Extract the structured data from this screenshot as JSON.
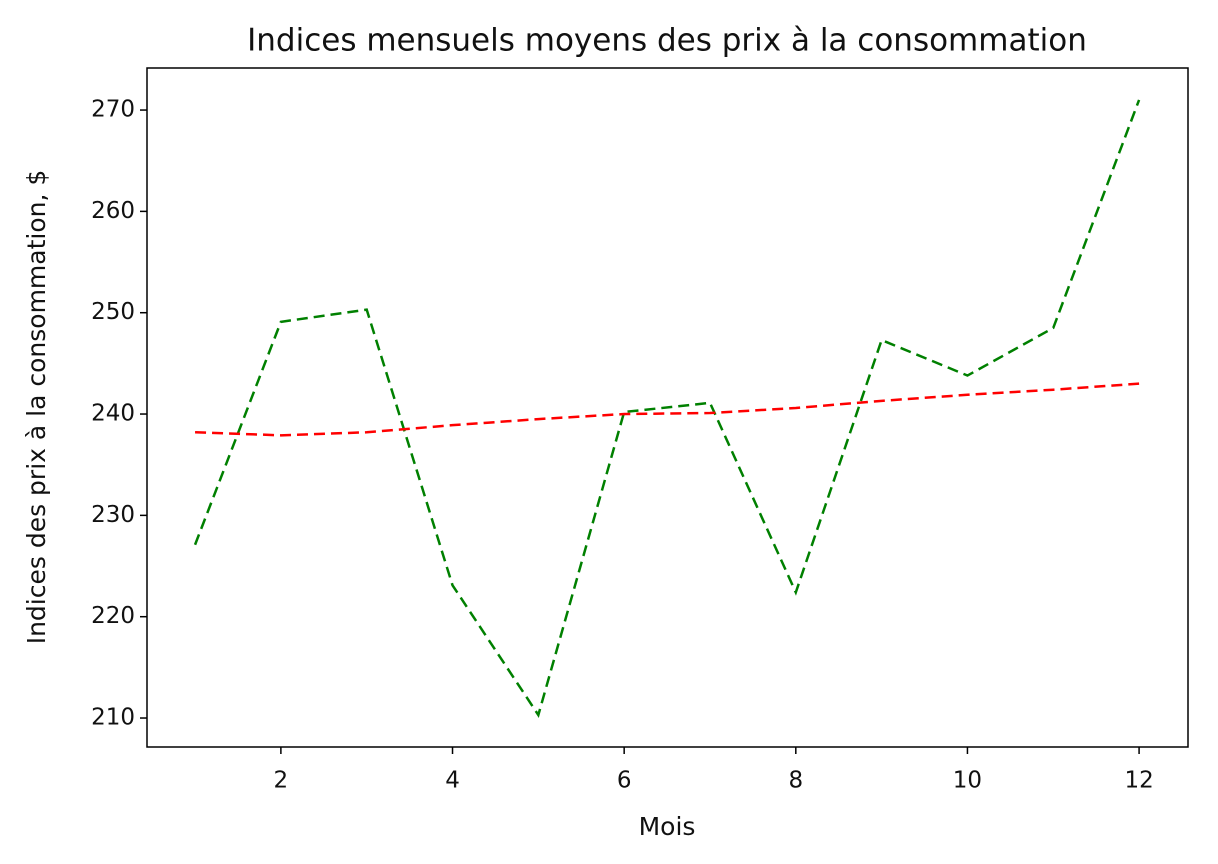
{
  "chart_data": {
    "type": "line",
    "title": "Indices mensuels moyens des prix à la consommation",
    "x_label": "Mois",
    "y_label": "Indices des prix à la consommation, $",
    "x": [
      1,
      2,
      3,
      4,
      5,
      6,
      7,
      8,
      9,
      10,
      11,
      12
    ],
    "series": [
      {
        "color": "#008000",
        "linestyle": "dashed",
        "values": [
          227.1,
          249.1,
          250.3,
          223.1,
          210.3,
          240.2,
          241.1,
          222.4,
          247.3,
          243.8,
          248.5,
          271.0
        ]
      },
      {
        "color": "#ff0000",
        "linestyle": "dashed",
        "values": [
          238.2,
          237.9,
          238.2,
          238.9,
          239.5,
          240.0,
          240.1,
          240.6,
          241.3,
          241.9,
          242.4,
          243.0
        ]
      }
    ],
    "xlim": [
      0.44,
      12.57
    ],
    "xticks": [
      2,
      4,
      6,
      8,
      10,
      12
    ],
    "ylim": [
      207.14,
      274.15
    ],
    "yticks": [
      210,
      220,
      230,
      240,
      250,
      260,
      270
    ],
    "grid": false
  }
}
